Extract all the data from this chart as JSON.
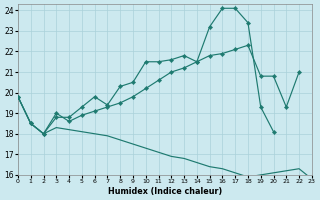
{
  "xlabel": "Humidex (Indice chaleur)",
  "bg_color": "#cce9ef",
  "grid_color": "#aad2da",
  "line_color": "#1e7a70",
  "xlim": [
    0,
    23
  ],
  "ylim": [
    16,
    24.3
  ],
  "xticks": [
    0,
    1,
    2,
    3,
    4,
    5,
    6,
    7,
    8,
    9,
    10,
    11,
    12,
    13,
    14,
    15,
    16,
    17,
    18,
    19,
    20,
    21,
    22,
    23
  ],
  "yticks": [
    16,
    17,
    18,
    19,
    20,
    21,
    22,
    23,
    24
  ],
  "curve_peak_x": [
    0,
    1,
    2,
    3,
    4,
    5,
    6,
    7,
    8,
    9,
    10,
    11,
    12,
    13,
    14,
    15,
    16,
    17,
    18,
    19,
    20,
    21,
    22,
    23
  ],
  "curve_peak_y": [
    19.8,
    18.5,
    18.0,
    18.8,
    18.8,
    19.3,
    19.8,
    19.4,
    20.3,
    20.5,
    21.5,
    21.5,
    21.6,
    21.8,
    21.5,
    23.2,
    24.1,
    24.1,
    23.4,
    19.3,
    18.1,
    null,
    null,
    null
  ],
  "curve_mid_x": [
    0,
    1,
    2,
    3,
    4,
    5,
    6,
    7,
    8,
    9,
    10,
    11,
    12,
    13,
    14,
    15,
    16,
    17,
    18,
    19,
    20,
    21,
    22,
    23
  ],
  "curve_mid_y": [
    19.8,
    18.5,
    18.0,
    19.0,
    18.6,
    18.9,
    19.1,
    19.3,
    19.5,
    19.8,
    20.2,
    20.6,
    21.0,
    21.2,
    21.5,
    21.8,
    21.9,
    22.1,
    22.3,
    20.8,
    20.8,
    19.3,
    21.0,
    null
  ],
  "curve_bot_x": [
    0,
    1,
    2,
    3,
    4,
    5,
    6,
    7,
    8,
    9,
    10,
    11,
    12,
    13,
    14,
    15,
    16,
    17,
    18,
    19,
    20,
    21,
    22,
    23
  ],
  "curve_bot_y": [
    19.8,
    18.5,
    18.0,
    18.3,
    18.2,
    18.1,
    18.0,
    17.9,
    17.7,
    17.5,
    17.3,
    17.1,
    16.9,
    16.8,
    16.6,
    16.4,
    16.3,
    16.1,
    15.9,
    16.0,
    16.1,
    16.2,
    16.3,
    15.8
  ]
}
